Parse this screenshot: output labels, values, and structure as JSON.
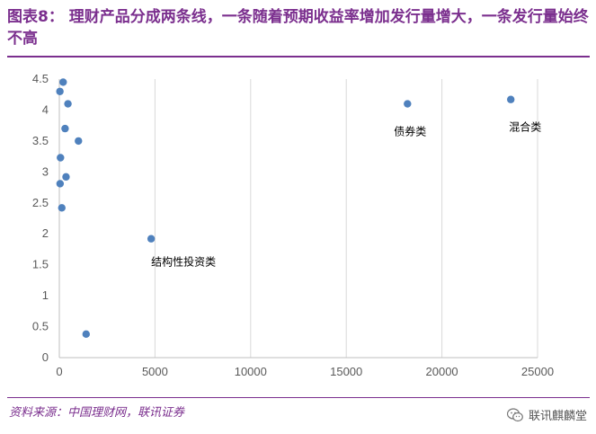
{
  "header": {
    "title": "图表8： 理财产品分成两条线，一条随着预期收益率增加发行量增大，一条发行量始终不高"
  },
  "footer": {
    "source": "资料来源：中国理财网，联讯证券",
    "brand": "联讯麒麟堂",
    "brand_icon": "wechat-icon"
  },
  "colors": {
    "title": "#7b2f8e",
    "marker": "#4f81bd",
    "grid": "#d9d9d9"
  },
  "chart_data": {
    "type": "scatter",
    "title": "",
    "xlabel": "",
    "ylabel": "",
    "xlim": [
      0,
      25000
    ],
    "ylim": [
      0,
      4.5
    ],
    "xticks": [
      0,
      5000,
      10000,
      15000,
      20000,
      25000
    ],
    "yticks": [
      0,
      0.5,
      1,
      1.5,
      2,
      2.5,
      3,
      3.5,
      4,
      4.5
    ],
    "grid": "vertical",
    "series": [
      {
        "name": "理财产品",
        "points": [
          {
            "x": 200,
            "y": 4.45
          },
          {
            "x": 30,
            "y": 4.3
          },
          {
            "x": 450,
            "y": 4.1
          },
          {
            "x": 300,
            "y": 3.7
          },
          {
            "x": 1000,
            "y": 3.5
          },
          {
            "x": 60,
            "y": 3.23
          },
          {
            "x": 350,
            "y": 2.92
          },
          {
            "x": 40,
            "y": 2.81
          },
          {
            "x": 130,
            "y": 2.42
          },
          {
            "x": 1400,
            "y": 0.38
          },
          {
            "x": 4800,
            "y": 1.92,
            "label": "结构性投资类"
          },
          {
            "x": 18200,
            "y": 4.1,
            "label": "债券类"
          },
          {
            "x": 23600,
            "y": 4.17,
            "label": "混合类"
          }
        ]
      }
    ]
  }
}
